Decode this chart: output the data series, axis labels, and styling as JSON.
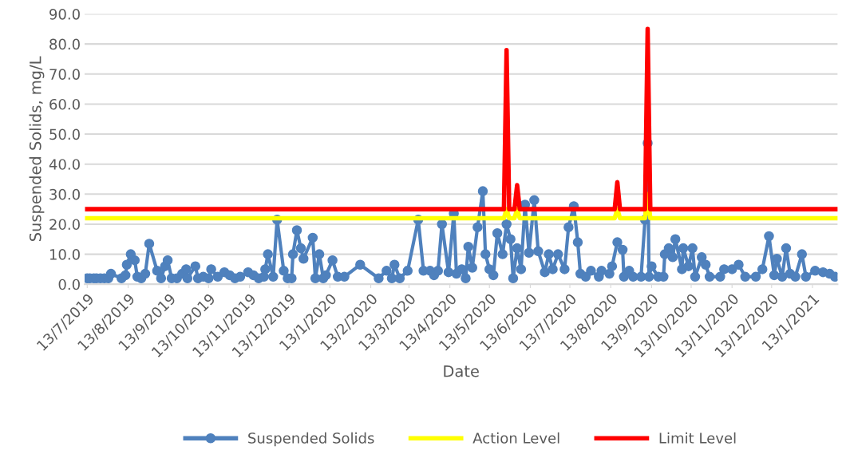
{
  "chart_data": {
    "type": "line",
    "xlabel": "Date",
    "ylabel": "Suspended Solids, mg/L",
    "ylim": [
      0,
      90
    ],
    "yticks": [
      {
        "value": 0,
        "label": "0.0"
      },
      {
        "value": 10,
        "label": "10.0"
      },
      {
        "value": 20,
        "label": "20.0"
      },
      {
        "value": 30,
        "label": "30.0"
      },
      {
        "value": 40,
        "label": "40.0"
      },
      {
        "value": 50,
        "label": "50.0"
      },
      {
        "value": 60,
        "label": "60.0"
      },
      {
        "value": 70,
        "label": "70.0"
      },
      {
        "value": 80,
        "label": "80.0"
      },
      {
        "value": 90,
        "label": "90.0"
      }
    ],
    "xlim": [
      "2019-07-11",
      "2021-02-01"
    ],
    "xticks": [
      {
        "value": "2019-07-13",
        "label": "13/7/2019"
      },
      {
        "value": "2019-08-13",
        "label": "13/8/2019"
      },
      {
        "value": "2019-09-13",
        "label": "13/9/2019"
      },
      {
        "value": "2019-10-13",
        "label": "13/10/2019"
      },
      {
        "value": "2019-11-13",
        "label": "13/11/2019"
      },
      {
        "value": "2019-12-13",
        "label": "13/12/2019"
      },
      {
        "value": "2020-01-13",
        "label": "13/1/2020"
      },
      {
        "value": "2020-02-13",
        "label": "13/2/2020"
      },
      {
        "value": "2020-03-13",
        "label": "13/3/2020"
      },
      {
        "value": "2020-04-13",
        "label": "13/4/2020"
      },
      {
        "value": "2020-05-13",
        "label": "13/5/2020"
      },
      {
        "value": "2020-06-13",
        "label": "13/6/2020"
      },
      {
        "value": "2020-07-13",
        "label": "13/7/2020"
      },
      {
        "value": "2020-08-13",
        "label": "13/8/2020"
      },
      {
        "value": "2020-09-13",
        "label": "13/9/2020"
      },
      {
        "value": "2020-10-13",
        "label": "13/10/2020"
      },
      {
        "value": "2020-11-13",
        "label": "13/11/2020"
      },
      {
        "value": "2020-12-13",
        "label": "13/12/2020"
      },
      {
        "value": "2021-01-13",
        "label": "13/1/2021"
      }
    ],
    "grid": "y",
    "legend": "bottom",
    "series": [
      {
        "name": "Suspended Solids",
        "color": "#4f81bd",
        "marker": "circle",
        "x": [
          "2019-07-13",
          "2019-07-15",
          "2019-07-18",
          "2019-07-20",
          "2019-07-23",
          "2019-07-26",
          "2019-07-29",
          "2019-07-31",
          "2019-08-08",
          "2019-08-11",
          "2019-08-12",
          "2019-08-15",
          "2019-08-18",
          "2019-08-20",
          "2019-08-23",
          "2019-08-26",
          "2019-08-29",
          "2019-09-04",
          "2019-09-07",
          "2019-09-10",
          "2019-09-12",
          "2019-09-15",
          "2019-09-19",
          "2019-09-23",
          "2019-09-26",
          "2019-09-27",
          "2019-10-03",
          "2019-10-05",
          "2019-10-09",
          "2019-10-13",
          "2019-10-15",
          "2019-10-20",
          "2019-10-25",
          "2019-10-29",
          "2019-11-02",
          "2019-11-06",
          "2019-11-12",
          "2019-11-16",
          "2019-11-20",
          "2019-11-24",
          "2019-11-25",
          "2019-11-27",
          "2019-12-01",
          "2019-12-04",
          "2019-12-09",
          "2019-12-12",
          "2019-12-15",
          "2019-12-16",
          "2019-12-19",
          "2019-12-22",
          "2019-12-24",
          "2019-12-31",
          "2020-01-02",
          "2020-01-05",
          "2020-01-08",
          "2020-01-10",
          "2020-01-15",
          "2020-01-19",
          "2020-01-24",
          "2020-02-05",
          "2020-02-19",
          "2020-02-25",
          "2020-02-29",
          "2020-03-02",
          "2020-03-06",
          "2020-03-12",
          "2020-03-20",
          "2020-03-24",
          "2020-03-29",
          "2020-04-01",
          "2020-04-04",
          "2020-04-07",
          "2020-04-12",
          "2020-04-16",
          "2020-04-18",
          "2020-04-22",
          "2020-04-25",
          "2020-04-27",
          "2020-04-30",
          "2020-05-04",
          "2020-05-08",
          "2020-05-10",
          "2020-05-13",
          "2020-05-16",
          "2020-05-19",
          "2020-05-23",
          "2020-05-26",
          "2020-05-29",
          "2020-05-31",
          "2020-06-03",
          "2020-06-06",
          "2020-06-09",
          "2020-06-12",
          "2020-06-16",
          "2020-06-19",
          "2020-06-24",
          "2020-06-27",
          "2020-06-30",
          "2020-07-04",
          "2020-07-09",
          "2020-07-12",
          "2020-07-16",
          "2020-07-19",
          "2020-07-21",
          "2020-07-25",
          "2020-07-29",
          "2020-08-04",
          "2020-08-06",
          "2020-08-12",
          "2020-08-14",
          "2020-08-18",
          "2020-08-22",
          "2020-08-23",
          "2020-08-27",
          "2020-08-30",
          "2020-09-05",
          "2020-09-08",
          "2020-09-10",
          "2020-09-11",
          "2020-09-13",
          "2020-09-18",
          "2020-09-22",
          "2020-09-23",
          "2020-09-26",
          "2020-09-29",
          "2020-10-01",
          "2020-10-06",
          "2020-10-07",
          "2020-10-11",
          "2020-10-14",
          "2020-10-16",
          "2020-10-21",
          "2020-10-24",
          "2020-10-27",
          "2020-11-04",
          "2020-11-07",
          "2020-11-13",
          "2020-11-18",
          "2020-11-23",
          "2020-12-01",
          "2020-12-06",
          "2020-12-11",
          "2020-12-15",
          "2020-12-17",
          "2020-12-21",
          "2020-12-24",
          "2020-12-27",
          "2020-12-31",
          "2021-01-05",
          "2021-01-08",
          "2021-01-15",
          "2021-01-21",
          "2021-01-26",
          "2021-01-30"
        ],
        "values": [
          2,
          2,
          2,
          2,
          2,
          2,
          2,
          3.5,
          2,
          3,
          6.5,
          10,
          8,
          2.5,
          2,
          3.5,
          13.5,
          4.5,
          2,
          6,
          8,
          2,
          2,
          3.5,
          5,
          2,
          6,
          2,
          2.5,
          2,
          5,
          2.5,
          4,
          3,
          2,
          2.5,
          4,
          3,
          2,
          2.5,
          5,
          10,
          2.5,
          21.5,
          4.5,
          2,
          2,
          10,
          18,
          12,
          8.5,
          15.5,
          2,
          10,
          2,
          3,
          8,
          2.5,
          2.5,
          6.5,
          2,
          4.5,
          2,
          6.5,
          2,
          4.5,
          21.5,
          4.5,
          4.5,
          3,
          4.5,
          20,
          4,
          23.5,
          3.5,
          5,
          2,
          12.5,
          5.5,
          19,
          31,
          10,
          5,
          3,
          17,
          10,
          20,
          15,
          2,
          12,
          5,
          26.5,
          10.5,
          28,
          11,
          4,
          10,
          5,
          10,
          5,
          19,
          26,
          14,
          3.5,
          2.5,
          4.5,
          2.5,
          4.5,
          3.5,
          6,
          14,
          11.5,
          2.5,
          4.5,
          2.5,
          2.5,
          21.5,
          47,
          2.5,
          6,
          2.5,
          2.5,
          10,
          12,
          9,
          15,
          5,
          12,
          6,
          12,
          2.5,
          9,
          6.5,
          2.5,
          2.5,
          5,
          5,
          6.5,
          2.5,
          2.5,
          5,
          16,
          3,
          8.5,
          2.5,
          12,
          3.5,
          2.5,
          10,
          2.5,
          4.5,
          4,
          3.5,
          2.5
        ]
      },
      {
        "name": "Action Level",
        "color": "#ffff00",
        "marker": "none",
        "x": [
          "2019-07-13",
          "2020-05-24",
          "2020-05-26",
          "2020-05-28",
          "2020-06-01",
          "2020-06-03",
          "2020-06-05",
          "2020-08-16",
          "2020-08-18",
          "2020-08-20",
          "2020-09-08",
          "2020-09-10",
          "2020-09-12",
          "2021-01-31"
        ],
        "values": [
          22,
          22,
          25,
          22,
          22,
          25,
          22,
          22,
          25,
          22,
          22,
          30,
          22,
          22
        ]
      },
      {
        "name": "Limit Level",
        "color": "#ff0000",
        "marker": "none",
        "x": [
          "2019-07-13",
          "2020-05-24",
          "2020-05-26",
          "2020-05-28",
          "2020-06-01",
          "2020-06-03",
          "2020-06-05",
          "2020-08-16",
          "2020-08-18",
          "2020-08-20",
          "2020-09-08",
          "2020-09-10",
          "2020-09-12",
          "2021-01-31"
        ],
        "values": [
          25,
          25,
          78,
          25,
          25,
          33,
          25,
          25,
          34,
          25,
          25,
          85,
          25,
          25
        ]
      }
    ]
  }
}
